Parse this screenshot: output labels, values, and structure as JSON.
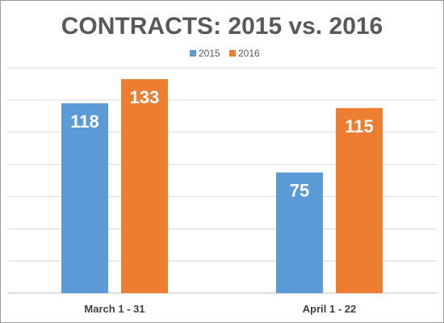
{
  "chart_data": {
    "type": "bar",
    "title": "CONTRACTS: 2015 vs. 2016",
    "categories": [
      "March 1 - 31",
      "April 1 - 22"
    ],
    "series": [
      {
        "name": "2015",
        "color": "#5b9bd5",
        "values": [
          118,
          75
        ]
      },
      {
        "name": "2016",
        "color": "#ed7d31",
        "values": [
          133,
          115
        ]
      }
    ],
    "xlabel": "",
    "ylabel": "",
    "ylim": [
      0,
      140
    ],
    "grid": true,
    "legend": "top-center",
    "data_labels": true
  }
}
